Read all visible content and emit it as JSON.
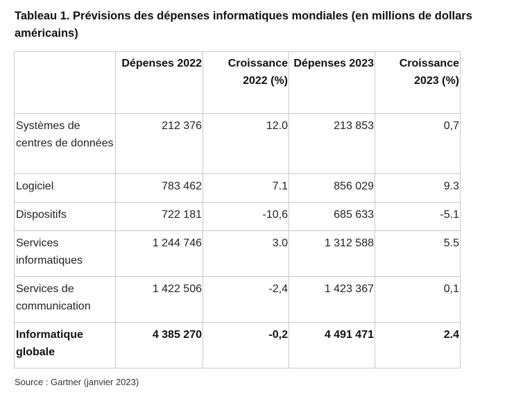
{
  "title": "Tableau 1. Prévisions des dépenses informatiques mondiales (en millions de dollars américains)",
  "table": {
    "headers": [
      "",
      "Dépenses 2022",
      "Croissance 2022 (%)",
      "Dépenses 2023",
      "Croissance 2023 (%)"
    ],
    "rows": [
      {
        "label": "Systèmes de centres de données",
        "values": [
          "212 376",
          "12.0",
          "213 853",
          "0,7"
        ]
      },
      {
        "label": "Logiciel",
        "values": [
          "783 462",
          "7.1",
          "856 029",
          "9.3"
        ]
      },
      {
        "label": "Dispositifs",
        "values": [
          "722 181",
          "-10,6",
          "685 633",
          "-5.1"
        ]
      },
      {
        "label": "Services informatiques",
        "values": [
          "1 244 746",
          "3.0",
          "1 312 588",
          "5.5"
        ]
      },
      {
        "label": "Services de communication",
        "values": [
          "1 422 506",
          "-2,4",
          "1 423 367",
          "0,1"
        ]
      },
      {
        "label": "Informatique globale",
        "values": [
          "4 385 270",
          "-0,2",
          "4 491 471",
          "2.4"
        ]
      }
    ]
  },
  "source": "Source : Gartner (janvier 2023)"
}
